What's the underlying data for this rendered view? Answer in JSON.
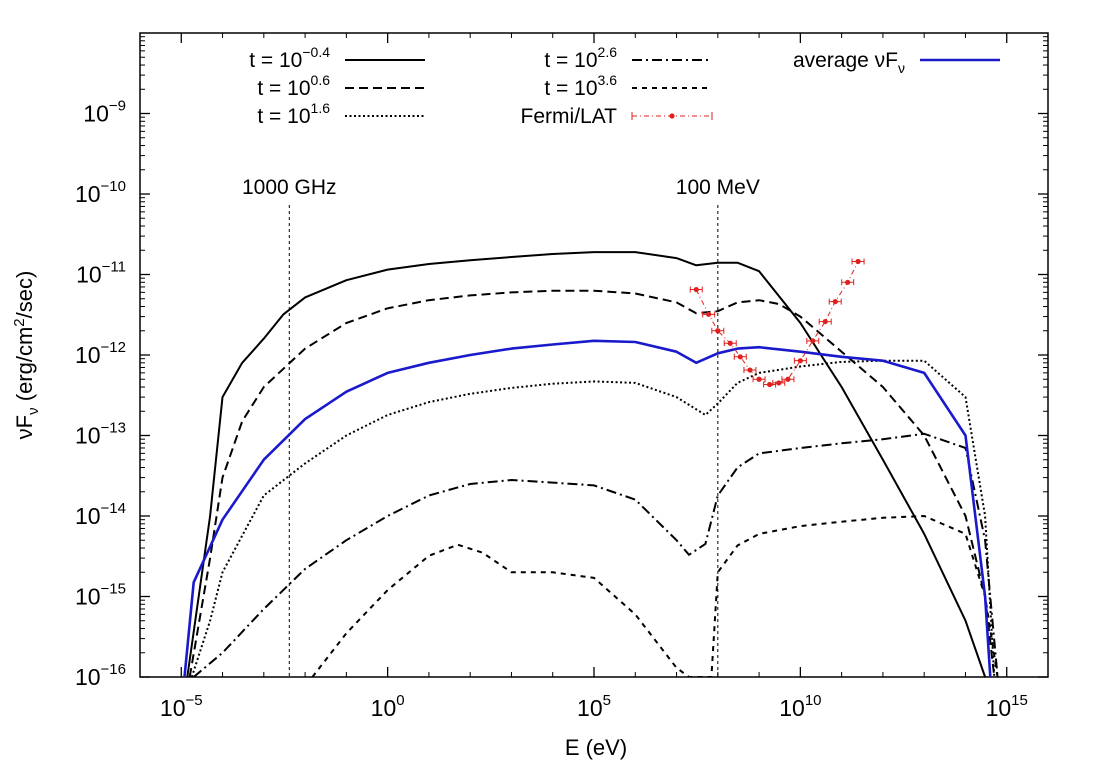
{
  "chart_data": {
    "type": "line",
    "xlabel": "E (eV)",
    "ylabel_base": "νF",
    "ylabel_sub": "ν",
    "ylabel_rest": " (erg/cm",
    "ylabel_sup": "2",
    "ylabel_end": "/sec)",
    "x_log": true,
    "y_log": true,
    "xlim": [
      1e-06,
      1e+16
    ],
    "ylim": [
      1e-16,
      1e-08
    ],
    "x_ticks": [
      {
        "value": 1e-05,
        "base": "10",
        "exp": "−5"
      },
      {
        "value": 1,
        "base": "10",
        "exp": "0"
      },
      {
        "value": 100000.0,
        "base": "10",
        "exp": "5"
      },
      {
        "value": 10000000000.0,
        "base": "10",
        "exp": "10"
      },
      {
        "value": 1000000000000000.0,
        "base": "10",
        "exp": "15"
      }
    ],
    "y_ticks": [
      {
        "value": 1e-09,
        "base": "10",
        "exp": "−9"
      },
      {
        "value": 1e-10,
        "base": "10",
        "exp": "−10"
      },
      {
        "value": 1e-11,
        "base": "10",
        "exp": "−11"
      },
      {
        "value": 1e-12,
        "base": "10",
        "exp": "−12"
      },
      {
        "value": 1e-13,
        "base": "10",
        "exp": "−13"
      },
      {
        "value": 1e-14,
        "base": "10",
        "exp": "−14"
      },
      {
        "value": 1e-15,
        "base": "10",
        "exp": "−15"
      },
      {
        "value": 1e-16,
        "base": "10",
        "exp": "−16"
      }
    ],
    "grid": false,
    "legend_position": "top",
    "vlines": [
      {
        "label": "1000 GHz",
        "x": 0.00414
      },
      {
        "label": "100 MeV",
        "x": 100000000.0
      }
    ],
    "series": [
      {
        "name_base": "t = 10",
        "name_exp": "−0.4",
        "style": "solid",
        "color": "#000000",
        "points": [
          [
            1.4e-05,
            1e-16
          ],
          [
            5e-05,
            1e-14
          ],
          [
            0.0001,
            3e-13
          ],
          [
            0.0003,
            8e-13
          ],
          [
            0.001,
            1.6e-12
          ],
          [
            0.003,
            3.2e-12
          ],
          [
            0.01,
            5.2e-12
          ],
          [
            0.1,
            8.5e-12
          ],
          [
            1,
            1.15e-11
          ],
          [
            10,
            1.35e-11
          ],
          [
            100,
            1.5e-11
          ],
          [
            1000.0,
            1.65e-11
          ],
          [
            10000.0,
            1.8e-11
          ],
          [
            100000.0,
            1.9e-11
          ],
          [
            1000000.0,
            1.9e-11
          ],
          [
            10000000.0,
            1.6e-11
          ],
          [
            30000000.0,
            1.3e-11
          ],
          [
            100000000.0,
            1.4e-11
          ],
          [
            300000000.0,
            1.4e-11
          ],
          [
            1000000000.0,
            1.1e-11
          ],
          [
            10000000000.0,
            2.5e-12
          ],
          [
            100000000000.0,
            4e-13
          ],
          [
            1000000000000.0,
            5e-14
          ],
          [
            10000000000000.0,
            6e-15
          ],
          [
            100000000000000.0,
            5e-16
          ],
          [
            300000000000000.0,
            1e-16
          ]
        ]
      },
      {
        "name_base": "t = 10",
        "name_exp": "0.6",
        "style": "dashed",
        "color": "#000000",
        "points": [
          [
            1.6e-05,
            1e-16
          ],
          [
            5e-05,
            3e-15
          ],
          [
            0.0001,
            3e-14
          ],
          [
            0.0003,
            1.5e-13
          ],
          [
            0.001,
            4e-13
          ],
          [
            0.01,
            1.2e-12
          ],
          [
            0.1,
            2.5e-12
          ],
          [
            1,
            3.8e-12
          ],
          [
            10,
            4.8e-12
          ],
          [
            100,
            5.5e-12
          ],
          [
            1000.0,
            6e-12
          ],
          [
            10000.0,
            6.3e-12
          ],
          [
            100000.0,
            6.3e-12
          ],
          [
            1000000.0,
            5.8e-12
          ],
          [
            10000000.0,
            4.5e-12
          ],
          [
            30000000.0,
            3.3e-12
          ],
          [
            100000000.0,
            3.5e-12
          ],
          [
            300000000.0,
            4.5e-12
          ],
          [
            1000000000.0,
            4.8e-12
          ],
          [
            3000000000.0,
            4.3e-12
          ],
          [
            10000000000.0,
            3e-12
          ],
          [
            100000000000.0,
            1.1e-12
          ],
          [
            1000000000000.0,
            4e-13
          ],
          [
            10000000000000.0,
            1e-13
          ],
          [
            100000000000000.0,
            1e-14
          ],
          [
            300000000000000.0,
            1e-15
          ],
          [
            500000000000000.0,
            1e-16
          ]
        ]
      },
      {
        "name_base": "t = 10",
        "name_exp": "1.6",
        "style": "dotted",
        "color": "#000000",
        "points": [
          [
            1.8e-05,
            1e-16
          ],
          [
            5e-05,
            5e-16
          ],
          [
            0.0001,
            2e-15
          ],
          [
            0.001,
            1.8e-14
          ],
          [
            0.01,
            4.5e-14
          ],
          [
            0.1,
            1e-13
          ],
          [
            1,
            1.8e-13
          ],
          [
            10,
            2.6e-13
          ],
          [
            100,
            3.3e-13
          ],
          [
            1000.0,
            3.9e-13
          ],
          [
            10000.0,
            4.4e-13
          ],
          [
            100000.0,
            4.7e-13
          ],
          [
            1000000.0,
            4.5e-13
          ],
          [
            10000000.0,
            3e-13
          ],
          [
            50000000.0,
            1.8e-13
          ],
          [
            100000000.0,
            2.5e-13
          ],
          [
            300000000.0,
            4.5e-13
          ],
          [
            1000000000.0,
            6e-13
          ],
          [
            10000000000.0,
            7.2e-13
          ],
          [
            100000000000.0,
            8.2e-13
          ],
          [
            1000000000000.0,
            8.5e-13
          ],
          [
            10000000000000.0,
            8.5e-13
          ],
          [
            100000000000000.0,
            3e-13
          ],
          [
            300000000000000.0,
            1e-14
          ],
          [
            500000000000000.0,
            1e-16
          ]
        ]
      },
      {
        "name_base": "t = 10",
        "name_exp": "2.6",
        "style": "dashdot",
        "color": "#000000",
        "points": [
          [
            2e-05,
            1e-16
          ],
          [
            0.0001,
            2e-16
          ],
          [
            0.001,
            7e-16
          ],
          [
            0.01,
            2.2e-15
          ],
          [
            0.1,
            5e-15
          ],
          [
            1,
            1e-14
          ],
          [
            10,
            1.8e-14
          ],
          [
            100,
            2.5e-14
          ],
          [
            1000.0,
            2.8e-14
          ],
          [
            10000.0,
            2.6e-14
          ],
          [
            100000.0,
            2.4e-14
          ],
          [
            1000000.0,
            1.6e-14
          ],
          [
            10000000.0,
            5e-15
          ],
          [
            20000000.0,
            3.3e-15
          ],
          [
            50000000.0,
            4.5e-15
          ],
          [
            100000000.0,
            1.8e-14
          ],
          [
            300000000.0,
            4e-14
          ],
          [
            1000000000.0,
            6e-14
          ],
          [
            10000000000.0,
            7e-14
          ],
          [
            100000000000.0,
            8e-14
          ],
          [
            1000000000000.0,
            9e-14
          ],
          [
            10000000000000.0,
            1.05e-13
          ],
          [
            100000000000000.0,
            7e-14
          ],
          [
            300000000000000.0,
            5e-15
          ],
          [
            600000000000000.0,
            1e-16
          ]
        ]
      },
      {
        "name_base": "t = 10",
        "name_exp": "3.6",
        "style": "shortdash",
        "color": "#000000",
        "points": [
          [
            0.015,
            1e-16
          ],
          [
            0.1,
            3.5e-16
          ],
          [
            1,
            1.2e-15
          ],
          [
            10,
            3.2e-15
          ],
          [
            50,
            4.4e-15
          ],
          [
            200,
            3.5e-15
          ],
          [
            1000.0,
            2e-15
          ],
          [
            10000.0,
            2e-15
          ],
          [
            100000.0,
            1.7e-15
          ],
          [
            1000000.0,
            6e-16
          ],
          [
            10000000.0,
            1.3e-16
          ],
          [
            20000000.0,
            1e-16
          ],
          [
            70000000.0,
            1e-16
          ],
          [
            100000000.0,
            2e-15
          ],
          [
            300000000.0,
            4.3e-15
          ],
          [
            1000000000.0,
            6e-15
          ],
          [
            10000000000.0,
            7.5e-15
          ],
          [
            100000000000.0,
            8.5e-15
          ],
          [
            1000000000000.0,
            9.5e-15
          ],
          [
            10000000000000.0,
            1e-14
          ],
          [
            100000000000000.0,
            6e-15
          ],
          [
            300000000000000.0,
            1e-15
          ],
          [
            600000000000000.0,
            1e-16
          ]
        ]
      },
      {
        "name_base": "average νF",
        "name_sub": "ν",
        "style": "solid",
        "color": "#1a1acc",
        "points": [
          [
            1.2e-05,
            1e-16
          ],
          [
            2e-05,
            1.5e-15
          ],
          [
            0.0001,
            9e-15
          ],
          [
            0.001,
            5e-14
          ],
          [
            0.01,
            1.6e-13
          ],
          [
            0.1,
            3.5e-13
          ],
          [
            1,
            6e-13
          ],
          [
            10,
            8e-13
          ],
          [
            100,
            1e-12
          ],
          [
            1000.0,
            1.2e-12
          ],
          [
            10000.0,
            1.35e-12
          ],
          [
            100000.0,
            1.5e-12
          ],
          [
            1000000.0,
            1.45e-12
          ],
          [
            10000000.0,
            1.1e-12
          ],
          [
            30000000.0,
            8e-13
          ],
          [
            100000000.0,
            1.05e-12
          ],
          [
            300000000.0,
            1.2e-12
          ],
          [
            1000000000.0,
            1.25e-12
          ],
          [
            10000000000.0,
            1.1e-12
          ],
          [
            100000000000.0,
            9.5e-13
          ],
          [
            1000000000000.0,
            8.5e-13
          ],
          [
            10000000000000.0,
            6e-13
          ],
          [
            100000000000000.0,
            1e-13
          ],
          [
            300000000000000.0,
            1e-15
          ],
          [
            400000000000000.0,
            1e-16
          ]
        ]
      }
    ],
    "fermi_lat": {
      "name": "Fermi/LAT",
      "color": "#e0201e",
      "points": [
        [
          30000000.0,
          6.5e-12
        ],
        [
          60000000.0,
          3.2e-12
        ],
        [
          100000000.0,
          2e-12
        ],
        [
          200000000.0,
          1.4e-12
        ],
        [
          350000000.0,
          9.5e-13
        ],
        [
          600000000.0,
          6.5e-13
        ],
        [
          1000000000.0,
          5e-13
        ],
        [
          1800000000.0,
          4.3e-13
        ],
        [
          3000000000.0,
          4.5e-13
        ],
        [
          5000000000.0,
          5e-13
        ],
        [
          10000000000.0,
          8.5e-13
        ],
        [
          20000000000.0,
          1.5e-12
        ],
        [
          40000000000.0,
          2.6e-12
        ],
        [
          70000000000.0,
          4.6e-12
        ],
        [
          140000000000.0,
          8e-12
        ],
        [
          250000000000.0,
          1.45e-11
        ]
      ]
    }
  }
}
